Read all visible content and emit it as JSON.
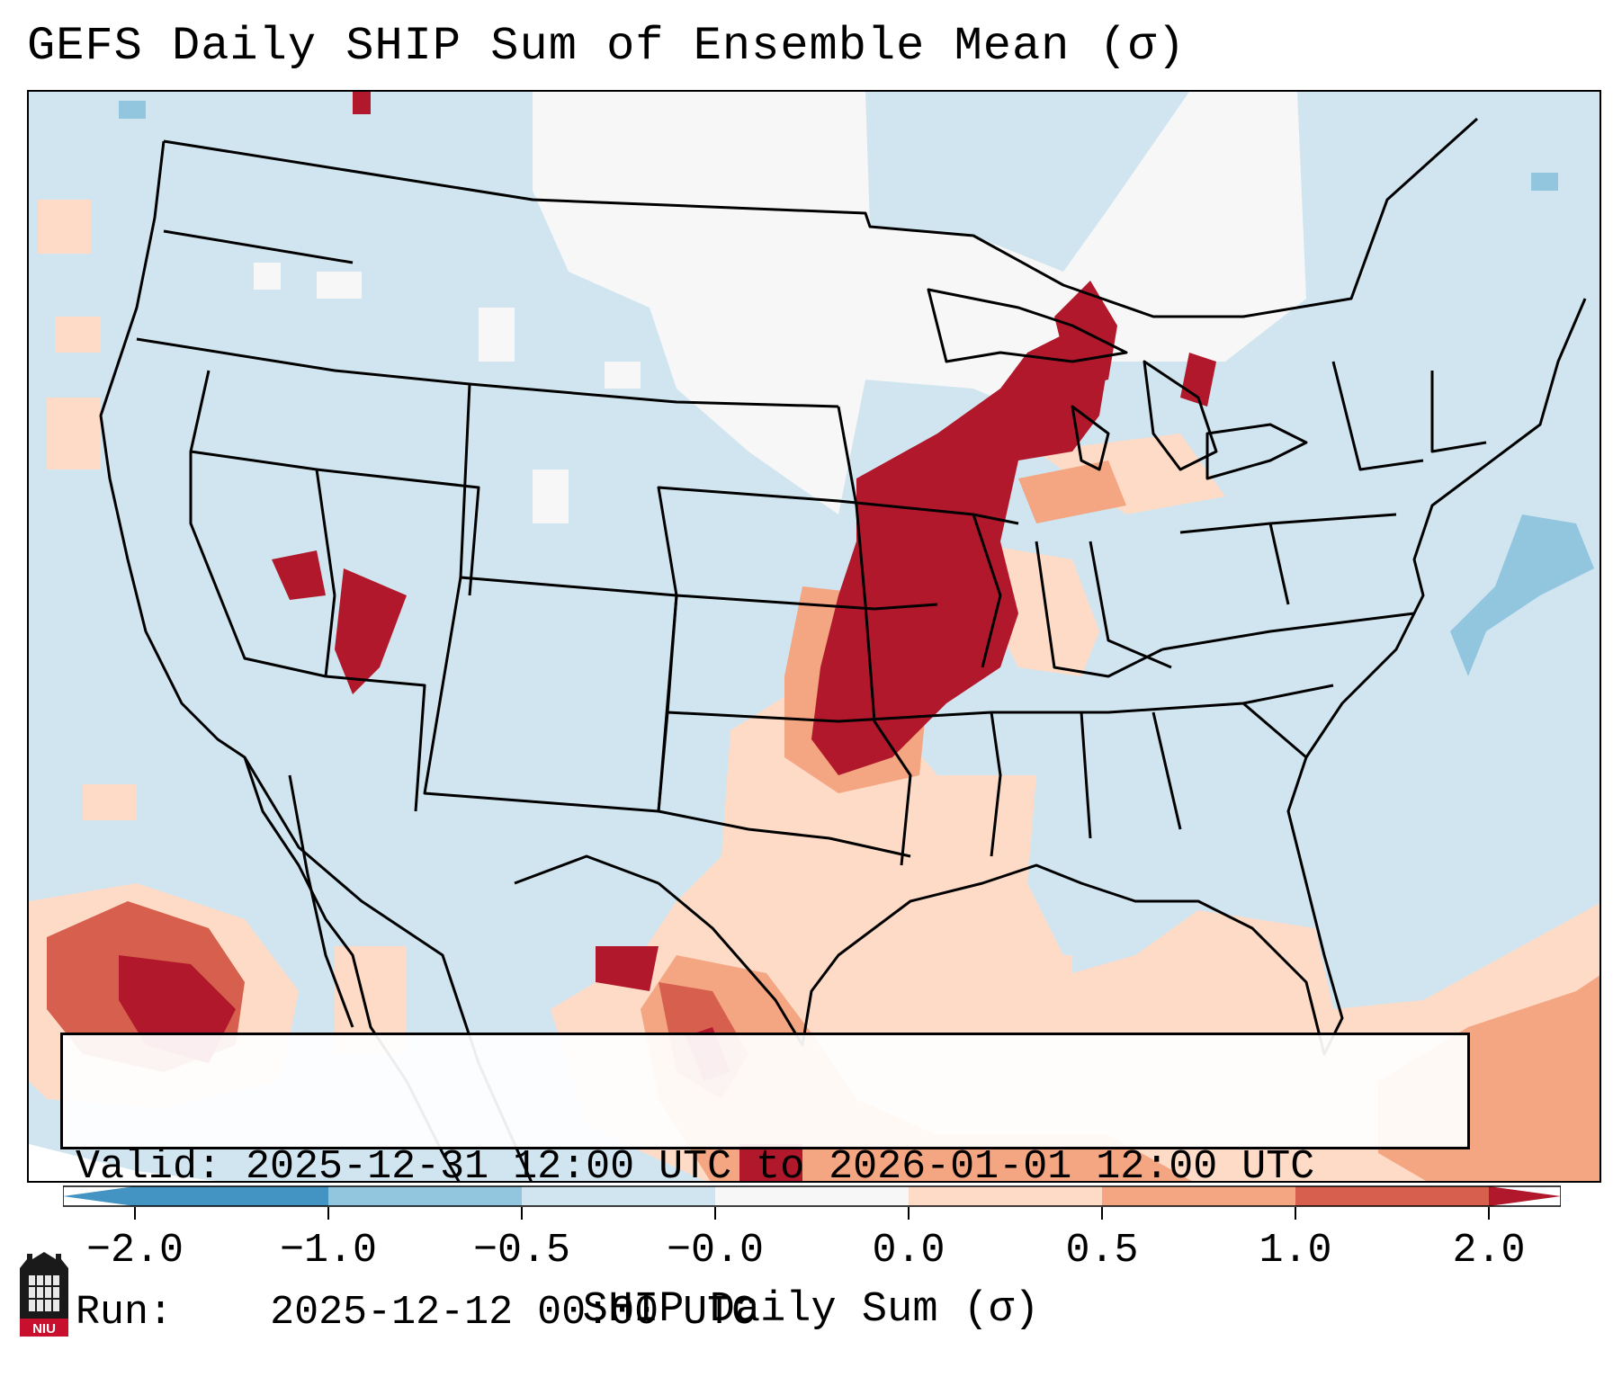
{
  "title": "GEFS Daily SHIP Sum of Ensemble Mean (σ)",
  "info": {
    "valid_label": "Valid:",
    "valid_value": "2025-12-31 12:00 UTC to 2026-01-01 12:00 UTC",
    "run_label": "Run:",
    "run_value": "2025-12-12 00:00 UTC"
  },
  "colorbar": {
    "label": "SHIP Daily Sum (σ)",
    "ticks": [
      "−2.0",
      "−1.0",
      "−0.5",
      "−0.0",
      "0.0",
      "0.5",
      "1.0",
      "2.0"
    ],
    "colors": [
      "#4393c3",
      "#92c5de",
      "#d1e5f0",
      "#f7f7f7",
      "#fddbc7",
      "#f4a582",
      "#d6604d",
      "#b2182b"
    ]
  },
  "logo": {
    "text": "NIU"
  }
}
